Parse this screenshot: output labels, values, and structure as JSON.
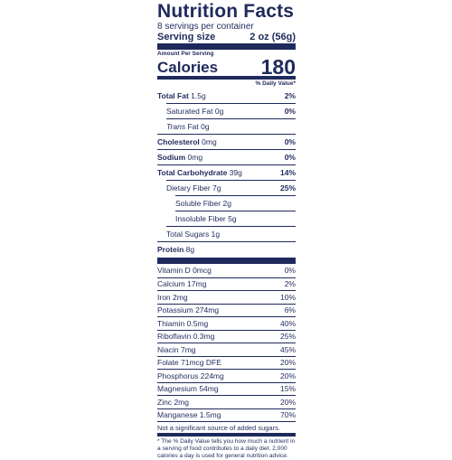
{
  "label": {
    "title": "Nutrition Facts",
    "servings_per_container": "8 servings per container",
    "serving_size_label": "Serving size",
    "serving_size_value": "2 oz (56g)",
    "amount_per_serving": "Amount Per Serving",
    "calories_label": "Calories",
    "calories_value": "180",
    "daily_value_header": "% Daily Value*",
    "nutrients": [
      {
        "name": "Total Fat",
        "amount": "1.5g",
        "dv": "2%"
      },
      {
        "name": "Saturated Fat",
        "amount": "0g",
        "dv": "0%"
      },
      {
        "name": "Trans",
        "suffix": " Fat",
        "amount": "0g",
        "dv": ""
      },
      {
        "name": "Cholesterol",
        "amount": "0mg",
        "dv": "0%"
      },
      {
        "name": "Sodium",
        "amount": "0mg",
        "dv": "0%"
      },
      {
        "name": "Total Carbohydrate",
        "amount": "39g",
        "dv": "14%"
      },
      {
        "name": "Dietary Fiber",
        "amount": "7g",
        "dv": "25%"
      },
      {
        "name": "Soluble Fiber",
        "amount": "2g",
        "dv": ""
      },
      {
        "name": "Insoluble Fiber",
        "amount": "5g",
        "dv": ""
      },
      {
        "name": "Total Sugars",
        "amount": "1g",
        "dv": ""
      },
      {
        "name": "Protein",
        "amount": "8g",
        "dv": ""
      }
    ],
    "vitamins": [
      {
        "name": "Vitamin D",
        "amount": "0mcg",
        "dv": "0%"
      },
      {
        "name": "Calcium",
        "amount": "17mg",
        "dv": "2%"
      },
      {
        "name": "Iron",
        "amount": "2mg",
        "dv": "10%"
      },
      {
        "name": "Potassium",
        "amount": "274mg",
        "dv": "6%"
      },
      {
        "name": "Thiamin",
        "amount": "0.5mg",
        "dv": "40%"
      },
      {
        "name": "Riboflavin",
        "amount": "0.3mg",
        "dv": "25%"
      },
      {
        "name": "Niacin",
        "amount": "7mg",
        "dv": "45%"
      },
      {
        "name": "Folate",
        "amount": "71mcg DFE",
        "dv": "20%"
      },
      {
        "name": "Phosphorus",
        "amount": "224mg",
        "dv": "20%"
      },
      {
        "name": "Magnesium",
        "amount": "54mg",
        "dv": "15%"
      },
      {
        "name": "Zinc",
        "amount": "2mg",
        "dv": "20%"
      },
      {
        "name": "Manganese",
        "amount": "1.5mg",
        "dv": "70%"
      }
    ],
    "added_sugars_note": "Not a significant source of added sugars.",
    "footnote": "* The % Daily Value tells you how much a nutrient in a serving of food contributes to a daily diet. 2,000 calories a day is used for general nutrition advice.",
    "colors": {
      "ink": "#1f2a5c",
      "background": "#ffffff"
    }
  }
}
